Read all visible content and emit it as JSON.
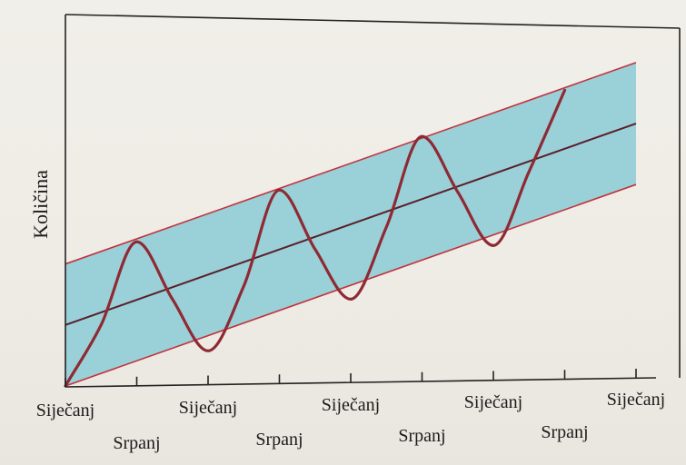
{
  "chart_data": {
    "type": "line",
    "title": "",
    "xlabel": "",
    "ylabel": "Količina",
    "x_ticks": [
      "Siječanj",
      "Srpanj",
      "Siječanj",
      "Srpanj",
      "Siječanj",
      "Srpanj",
      "Siječanj",
      "Srpanj",
      "Siječanj"
    ],
    "xlim": [
      0,
      8
    ],
    "grid": false,
    "legend": "none",
    "colors": {
      "band_fill": "#9ad0d8",
      "band_edge": "#c0343e",
      "trend_line": "#5a1f2a",
      "seasonal_curve": "#8e2a33",
      "axis": "#222222"
    },
    "series": [
      {
        "kind": "band_upper",
        "x": [
          0,
          8
        ],
        "y": [
          0.66,
          1.75
        ]
      },
      {
        "kind": "trend",
        "x": [
          0,
          8
        ],
        "y": [
          0.33,
          1.42
        ]
      },
      {
        "kind": "band_lower",
        "x": [
          0,
          8
        ],
        "y": [
          0.0,
          1.09
        ]
      },
      {
        "kind": "seasonal",
        "x": [
          0.0,
          0.5,
          1.0,
          1.5,
          2.0,
          2.5,
          3.0,
          3.5,
          4.0,
          4.5,
          5.0,
          5.5,
          6.0,
          6.5,
          7.0
        ],
        "y": [
          0.0,
          0.33,
          0.78,
          0.47,
          0.19,
          0.54,
          1.06,
          0.74,
          0.47,
          0.86,
          1.35,
          1.05,
          0.76,
          1.16,
          1.6
        ]
      }
    ]
  }
}
